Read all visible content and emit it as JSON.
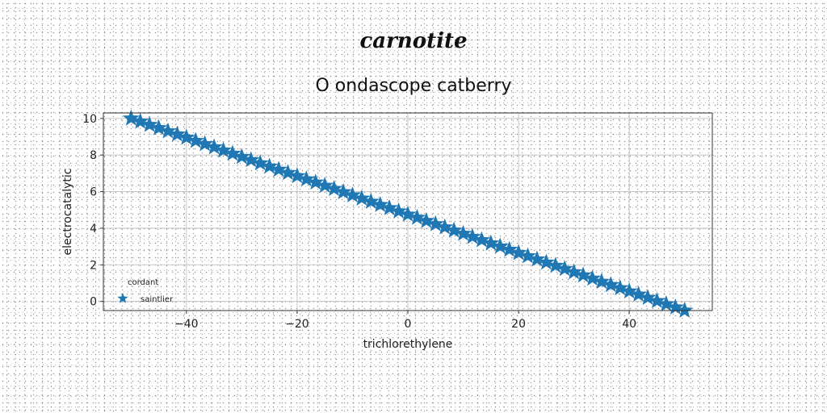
{
  "figure": {
    "title": "carnotite"
  },
  "chart_data": {
    "type": "line",
    "title": "O ondascope catberry",
    "xlabel": "trichlorethylene",
    "ylabel": "electrocatalytic",
    "xlim": [
      -55,
      55
    ],
    "ylim": [
      -0.5,
      10.3
    ],
    "xticks": [
      -40,
      -20,
      0,
      20,
      40
    ],
    "xtick_labels": [
      "−40",
      "−20",
      "0",
      "20",
      "40"
    ],
    "yticks": [
      0,
      2,
      4,
      6,
      8,
      10
    ],
    "ytick_labels": [
      "0",
      "2",
      "4",
      "6",
      "8",
      "10"
    ],
    "grid": true,
    "legend": {
      "title": "cordant",
      "placement": "lower-left"
    },
    "series": [
      {
        "name": "saintlier",
        "marker": "star",
        "color": "#1f77b4",
        "x_start": -50,
        "x_end": 50,
        "point_count": 61,
        "y_start": 10,
        "y_end": -0.5
      }
    ]
  }
}
